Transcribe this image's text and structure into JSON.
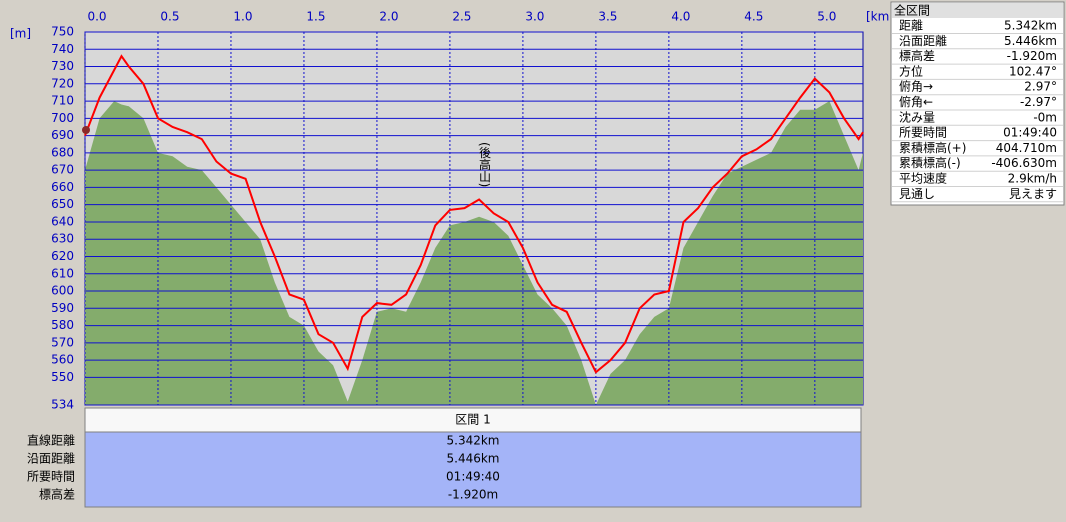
{
  "chart_data": {
    "type": "elevation-profile",
    "x_unit": "[km]",
    "y_unit": "[m]",
    "annotation": "(後高山)",
    "xlim": [
      0,
      5.33
    ],
    "ylim": [
      534,
      750
    ],
    "xticks": [
      {
        "value": 0,
        "label": "0.0"
      },
      0.5,
      {
        "value": 1,
        "label": "1.0"
      },
      1.5,
      {
        "value": 2,
        "label": "2.0"
      },
      2.5,
      {
        "value": 3,
        "label": "3.0"
      },
      3.5,
      {
        "value": 4,
        "label": "4.0"
      },
      4.5,
      {
        "value": 5,
        "label": "5.0"
      }
    ],
    "yticks": [
      534,
      550,
      560,
      570,
      580,
      590,
      600,
      610,
      620,
      630,
      640,
      650,
      660,
      670,
      680,
      690,
      700,
      710,
      720,
      730,
      740,
      750
    ],
    "grid": true,
    "x": [
      0,
      0.1,
      0.2,
      0.25,
      0.3,
      0.4,
      0.5,
      0.6,
      0.7,
      0.8,
      0.9,
      1.0,
      1.1,
      1.2,
      1.3,
      1.4,
      1.5,
      1.6,
      1.7,
      1.8,
      1.9,
      2.0,
      2.1,
      2.2,
      2.3,
      2.4,
      2.5,
      2.6,
      2.7,
      2.8,
      2.9,
      3.0,
      3.1,
      3.2,
      3.3,
      3.4,
      3.5,
      3.6,
      3.7,
      3.8,
      3.9,
      4.0,
      4.1,
      4.2,
      4.3,
      4.4,
      4.5,
      4.6,
      4.7,
      4.8,
      4.9,
      5.0,
      5.1,
      5.2,
      5.3,
      5.33
    ],
    "series": [
      {
        "type": "area",
        "color": "#84ac6c",
        "values": [
          670,
          700,
          710,
          708,
          707,
          700,
          680,
          678,
          672,
          670,
          660,
          650,
          640,
          630,
          605,
          585,
          580,
          565,
          557,
          536,
          560,
          588,
          590,
          588,
          605,
          625,
          638,
          640,
          643,
          640,
          632,
          615,
          598,
          590,
          580,
          560,
          534,
          552,
          560,
          575,
          585,
          590,
          625,
          640,
          655,
          668,
          672,
          676,
          680,
          695,
          705,
          705,
          710,
          690,
          670,
          680
        ]
      },
      {
        "type": "line",
        "color": "#ff0000",
        "values": [
          690,
          712,
          728,
          736,
          730,
          720,
          700,
          695,
          692,
          688,
          675,
          668,
          665,
          640,
          620,
          598,
          595,
          575,
          570,
          555,
          585,
          593,
          592,
          598,
          615,
          638,
          647,
          648,
          653,
          645,
          640,
          625,
          605,
          592,
          588,
          570,
          553,
          560,
          570,
          590,
          598,
          600,
          640,
          648,
          660,
          668,
          678,
          682,
          688,
          700,
          712,
          723,
          715,
          700,
          688,
          692
        ]
      }
    ]
  },
  "summary": {
    "title": "全区間",
    "rows": [
      [
        "距離",
        "5.342km"
      ],
      [
        "沿面距離",
        "5.446km"
      ],
      [
        "標高差",
        "-1.920m"
      ],
      [
        "方位",
        "102.47°"
      ],
      [
        "俯角→",
        "2.97°"
      ],
      [
        "俯角←",
        "-2.97°"
      ],
      [
        "沈み量",
        "-0m"
      ],
      [
        "所要時間",
        "01:49:40"
      ],
      [
        "累積標高(+)",
        "404.710m"
      ],
      [
        "累積標高(-)",
        "-406.630m"
      ],
      [
        "平均速度",
        "2.9km/h"
      ],
      [
        "見通し",
        "見えます"
      ]
    ]
  },
  "segment_table": {
    "header": "区間 1",
    "rows": [
      [
        "直線距離",
        "5.342km"
      ],
      [
        "沿面距離",
        "5.446km"
      ],
      [
        "所要時間",
        "01:49:40"
      ],
      [
        "標高差",
        "-1.920m"
      ]
    ]
  }
}
